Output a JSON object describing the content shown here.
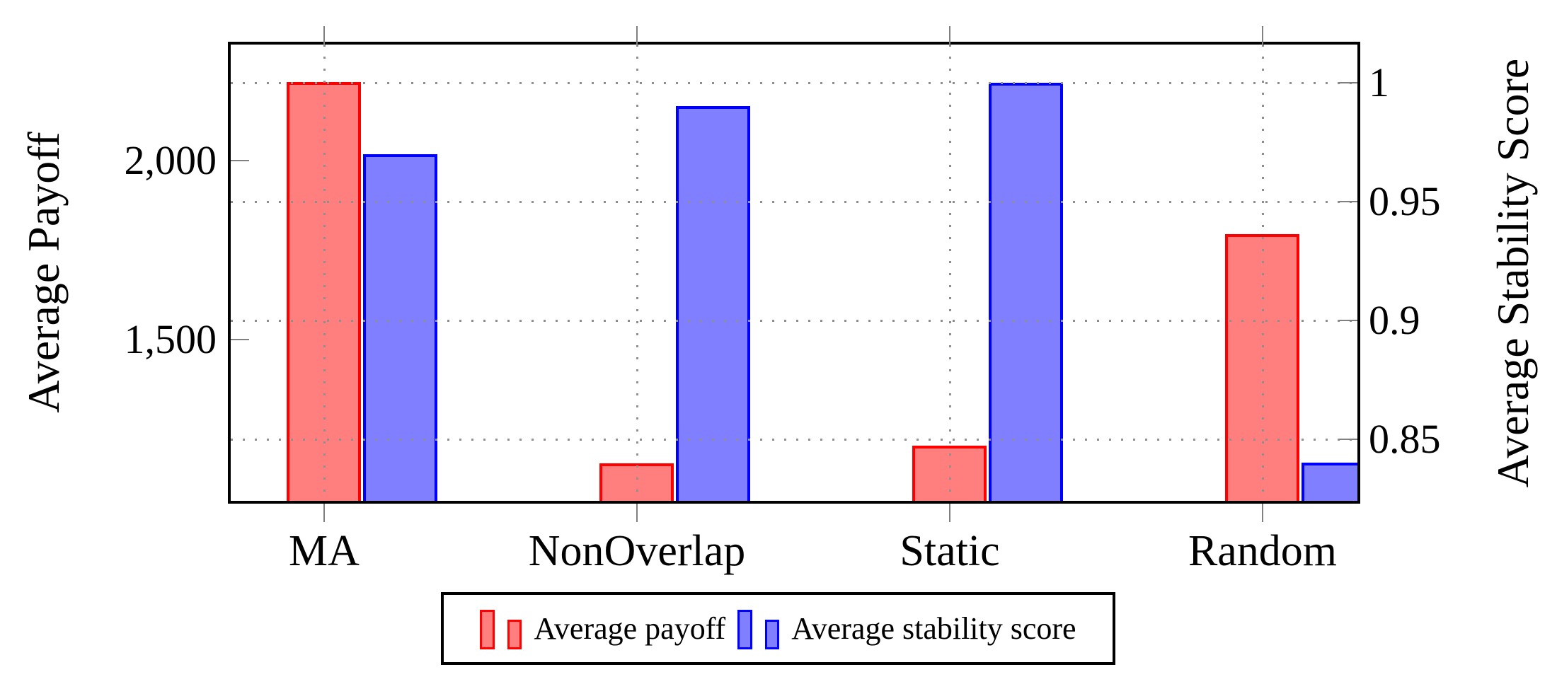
{
  "chart_data": {
    "type": "bar",
    "title": "",
    "categories": [
      "MA",
      "NonOverlap",
      "Static",
      "Random"
    ],
    "series": [
      {
        "name": "Average payoff",
        "axis": "left",
        "fill": "#ff7f7f",
        "border": "#ff0000",
        "values": [
          2220,
          1155,
          1205,
          1795
        ]
      },
      {
        "name": "Average stability score",
        "axis": "right",
        "fill": "#7f7fff",
        "border": "#0000ff",
        "values": [
          0.97,
          0.99,
          1.0,
          0.84
        ]
      }
    ],
    "ylabel_left": "Average Payoff",
    "ylabel_right": "Average Stability Score",
    "left_axis": {
      "ylim": [
        1050,
        2325
      ],
      "ticks": [
        {
          "value": 2000,
          "label": "2,000"
        },
        {
          "value": 1500,
          "label": "1,500"
        }
      ]
    },
    "right_axis": {
      "ylim": [
        0.824,
        1.016
      ],
      "ticks": [
        {
          "value": 1,
          "label": "1"
        },
        {
          "value": 0.95,
          "label": "0.95"
        },
        {
          "value": 0.9,
          "label": "0.9"
        },
        {
          "value": 0.85,
          "label": "0.85"
        }
      ]
    },
    "grid": {
      "style": "dotted",
      "color": "#8f8f8f",
      "horizontal_at_right_axis_ticks": true,
      "vertical_at_category_centers": true
    },
    "legend": {
      "position": "below-chart",
      "entries": [
        "Average payoff",
        "Average stability score"
      ]
    }
  }
}
